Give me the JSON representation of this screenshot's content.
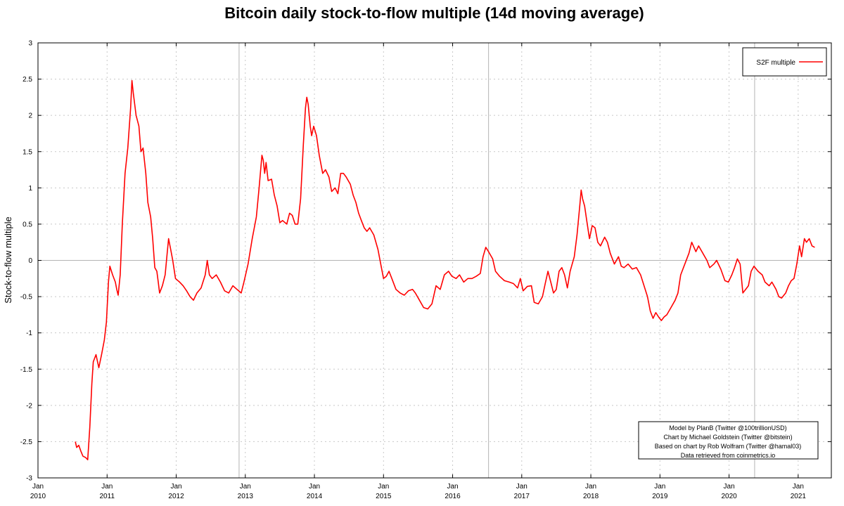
{
  "chart_data": {
    "type": "line",
    "title": "Bitcoin daily stock-to-flow multiple (14d moving average)",
    "ylabel": "Stock-to-flow multiple",
    "xlabel": "",
    "xlim": [
      2010.0,
      2021.48
    ],
    "ylim": [
      -3,
      3
    ],
    "y_ticks": [
      "3",
      "2.5",
      "2",
      "1.5",
      "1",
      "0.5",
      "0",
      "-0.5",
      "-1",
      "-1.5",
      "-2",
      "-2.5",
      "-3"
    ],
    "x_ticks": [
      {
        "month": "Jan",
        "year": "2010"
      },
      {
        "month": "Jan",
        "year": "2011"
      },
      {
        "month": "Jan",
        "year": "2012"
      },
      {
        "month": "Jan",
        "year": "2013"
      },
      {
        "month": "Jan",
        "year": "2014"
      },
      {
        "month": "Jan",
        "year": "2015"
      },
      {
        "month": "Jan",
        "year": "2016"
      },
      {
        "month": "Jan",
        "year": "2017"
      },
      {
        "month": "Jan",
        "year": "2018"
      },
      {
        "month": "Jan",
        "year": "2019"
      },
      {
        "month": "Jan",
        "year": "2020"
      },
      {
        "month": "Jan",
        "year": "2021"
      }
    ],
    "grid": true,
    "halving_lines": [
      2012.91,
      2016.52,
      2020.37
    ],
    "legend": {
      "position": "top-right",
      "entries": [
        "S2F multiple"
      ]
    },
    "credits": [
      "Model by PlanB (Twitter @100trillionUSD)",
      "Chart by Michael Goldstein (Twitter @bitstein)",
      "Based on chart by Rob Wolfram (Twitter @hamal03)",
      "Data retrieved from coinmetrics.io"
    ],
    "series": [
      {
        "name": "S2F multiple",
        "color": "#ff0000",
        "points": [
          [
            2010.54,
            -2.5
          ],
          [
            2010.56,
            -2.58
          ],
          [
            2010.59,
            -2.55
          ],
          [
            2010.62,
            -2.63
          ],
          [
            2010.65,
            -2.7
          ],
          [
            2010.69,
            -2.72
          ],
          [
            2010.72,
            -2.75
          ],
          [
            2010.75,
            -2.3
          ],
          [
            2010.78,
            -1.7
          ],
          [
            2010.8,
            -1.4
          ],
          [
            2010.84,
            -1.3
          ],
          [
            2010.88,
            -1.48
          ],
          [
            2010.92,
            -1.3
          ],
          [
            2010.96,
            -1.1
          ],
          [
            2010.99,
            -0.85
          ],
          [
            2011.02,
            -0.3
          ],
          [
            2011.04,
            -0.08
          ],
          [
            2011.08,
            -0.2
          ],
          [
            2011.12,
            -0.3
          ],
          [
            2011.14,
            -0.4
          ],
          [
            2011.16,
            -0.48
          ],
          [
            2011.19,
            -0.2
          ],
          [
            2011.22,
            0.5
          ],
          [
            2011.26,
            1.2
          ],
          [
            2011.3,
            1.55
          ],
          [
            2011.34,
            2.1
          ],
          [
            2011.36,
            2.48
          ],
          [
            2011.38,
            2.3
          ],
          [
            2011.42,
            2.0
          ],
          [
            2011.46,
            1.85
          ],
          [
            2011.49,
            1.5
          ],
          [
            2011.52,
            1.55
          ],
          [
            2011.56,
            1.2
          ],
          [
            2011.59,
            0.8
          ],
          [
            2011.63,
            0.6
          ],
          [
            2011.66,
            0.3
          ],
          [
            2011.69,
            -0.1
          ],
          [
            2011.72,
            -0.15
          ],
          [
            2011.74,
            -0.3
          ],
          [
            2011.76,
            -0.45
          ],
          [
            2011.8,
            -0.35
          ],
          [
            2011.84,
            -0.2
          ],
          [
            2011.87,
            0.1
          ],
          [
            2011.89,
            0.3
          ],
          [
            2011.92,
            0.15
          ],
          [
            2011.95,
            0.0
          ],
          [
            2011.99,
            -0.25
          ],
          [
            2012.05,
            -0.3
          ],
          [
            2012.1,
            -0.35
          ],
          [
            2012.15,
            -0.42
          ],
          [
            2012.2,
            -0.5
          ],
          [
            2012.25,
            -0.55
          ],
          [
            2012.3,
            -0.45
          ],
          [
            2012.36,
            -0.38
          ],
          [
            2012.42,
            -0.2
          ],
          [
            2012.45,
            0.0
          ],
          [
            2012.48,
            -0.2
          ],
          [
            2012.52,
            -0.25
          ],
          [
            2012.58,
            -0.2
          ],
          [
            2012.64,
            -0.3
          ],
          [
            2012.7,
            -0.42
          ],
          [
            2012.76,
            -0.45
          ],
          [
            2012.82,
            -0.35
          ],
          [
            2012.88,
            -0.4
          ],
          [
            2012.94,
            -0.45
          ],
          [
            2012.98,
            -0.3
          ],
          [
            2013.04,
            -0.05
          ],
          [
            2013.1,
            0.3
          ],
          [
            2013.16,
            0.6
          ],
          [
            2013.2,
            1.0
          ],
          [
            2013.24,
            1.45
          ],
          [
            2013.26,
            1.38
          ],
          [
            2013.28,
            1.2
          ],
          [
            2013.3,
            1.35
          ],
          [
            2013.33,
            1.1
          ],
          [
            2013.38,
            1.12
          ],
          [
            2013.42,
            0.9
          ],
          [
            2013.46,
            0.75
          ],
          [
            2013.5,
            0.52
          ],
          [
            2013.54,
            0.55
          ],
          [
            2013.6,
            0.5
          ],
          [
            2013.64,
            0.65
          ],
          [
            2013.68,
            0.62
          ],
          [
            2013.72,
            0.5
          ],
          [
            2013.76,
            0.5
          ],
          [
            2013.8,
            0.85
          ],
          [
            2013.84,
            1.6
          ],
          [
            2013.87,
            2.1
          ],
          [
            2013.89,
            2.25
          ],
          [
            2013.91,
            2.15
          ],
          [
            2013.94,
            1.85
          ],
          [
            2013.96,
            1.72
          ],
          [
            2013.99,
            1.85
          ],
          [
            2014.03,
            1.72
          ],
          [
            2014.07,
            1.45
          ],
          [
            2014.12,
            1.2
          ],
          [
            2014.16,
            1.25
          ],
          [
            2014.21,
            1.15
          ],
          [
            2014.25,
            0.95
          ],
          [
            2014.3,
            1.0
          ],
          [
            2014.34,
            0.92
          ],
          [
            2014.38,
            1.2
          ],
          [
            2014.42,
            1.2
          ],
          [
            2014.46,
            1.15
          ],
          [
            2014.52,
            1.05
          ],
          [
            2014.56,
            0.9
          ],
          [
            2014.6,
            0.8
          ],
          [
            2014.64,
            0.65
          ],
          [
            2014.68,
            0.55
          ],
          [
            2014.72,
            0.45
          ],
          [
            2014.76,
            0.4
          ],
          [
            2014.8,
            0.45
          ],
          [
            2014.86,
            0.35
          ],
          [
            2014.92,
            0.15
          ],
          [
            2014.97,
            -0.1
          ],
          [
            2015.0,
            -0.25
          ],
          [
            2015.04,
            -0.22
          ],
          [
            2015.08,
            -0.15
          ],
          [
            2015.12,
            -0.25
          ],
          [
            2015.18,
            -0.4
          ],
          [
            2015.24,
            -0.45
          ],
          [
            2015.3,
            -0.48
          ],
          [
            2015.36,
            -0.42
          ],
          [
            2015.42,
            -0.4
          ],
          [
            2015.46,
            -0.45
          ],
          [
            2015.52,
            -0.55
          ],
          [
            2015.58,
            -0.65
          ],
          [
            2015.64,
            -0.67
          ],
          [
            2015.7,
            -0.6
          ],
          [
            2015.76,
            -0.35
          ],
          [
            2015.82,
            -0.4
          ],
          [
            2015.88,
            -0.2
          ],
          [
            2015.94,
            -0.15
          ],
          [
            2015.99,
            -0.22
          ],
          [
            2016.05,
            -0.25
          ],
          [
            2016.1,
            -0.2
          ],
          [
            2016.16,
            -0.3
          ],
          [
            2016.22,
            -0.25
          ],
          [
            2016.28,
            -0.25
          ],
          [
            2016.34,
            -0.22
          ],
          [
            2016.4,
            -0.18
          ],
          [
            2016.44,
            0.05
          ],
          [
            2016.48,
            0.18
          ],
          [
            2016.52,
            0.12
          ],
          [
            2016.58,
            0.02
          ],
          [
            2016.62,
            -0.15
          ],
          [
            2016.68,
            -0.22
          ],
          [
            2016.75,
            -0.28
          ],
          [
            2016.82,
            -0.3
          ],
          [
            2016.88,
            -0.32
          ],
          [
            2016.94,
            -0.38
          ],
          [
            2016.98,
            -0.25
          ],
          [
            2017.02,
            -0.42
          ],
          [
            2017.08,
            -0.36
          ],
          [
            2017.14,
            -0.35
          ],
          [
            2017.18,
            -0.58
          ],
          [
            2017.24,
            -0.6
          ],
          [
            2017.3,
            -0.5
          ],
          [
            2017.34,
            -0.32
          ],
          [
            2017.38,
            -0.15
          ],
          [
            2017.42,
            -0.3
          ],
          [
            2017.46,
            -0.45
          ],
          [
            2017.5,
            -0.4
          ],
          [
            2017.54,
            -0.15
          ],
          [
            2017.58,
            -0.1
          ],
          [
            2017.62,
            -0.2
          ],
          [
            2017.66,
            -0.38
          ],
          [
            2017.7,
            -0.15
          ],
          [
            2017.76,
            0.05
          ],
          [
            2017.8,
            0.35
          ],
          [
            2017.84,
            0.75
          ],
          [
            2017.86,
            0.97
          ],
          [
            2017.88,
            0.85
          ],
          [
            2017.91,
            0.75
          ],
          [
            2017.94,
            0.55
          ],
          [
            2017.98,
            0.3
          ],
          [
            2018.02,
            0.48
          ],
          [
            2018.06,
            0.45
          ],
          [
            2018.1,
            0.25
          ],
          [
            2018.14,
            0.2
          ],
          [
            2018.2,
            0.32
          ],
          [
            2018.24,
            0.25
          ],
          [
            2018.28,
            0.1
          ],
          [
            2018.34,
            -0.05
          ],
          [
            2018.4,
            0.05
          ],
          [
            2018.44,
            -0.08
          ],
          [
            2018.48,
            -0.1
          ],
          [
            2018.54,
            -0.05
          ],
          [
            2018.6,
            -0.12
          ],
          [
            2018.66,
            -0.1
          ],
          [
            2018.72,
            -0.2
          ],
          [
            2018.78,
            -0.38
          ],
          [
            2018.82,
            -0.5
          ],
          [
            2018.86,
            -0.7
          ],
          [
            2018.9,
            -0.8
          ],
          [
            2018.94,
            -0.72
          ],
          [
            2018.98,
            -0.78
          ],
          [
            2019.02,
            -0.83
          ],
          [
            2019.06,
            -0.78
          ],
          [
            2019.1,
            -0.75
          ],
          [
            2019.16,
            -0.65
          ],
          [
            2019.22,
            -0.55
          ],
          [
            2019.26,
            -0.45
          ],
          [
            2019.3,
            -0.2
          ],
          [
            2019.36,
            -0.05
          ],
          [
            2019.42,
            0.1
          ],
          [
            2019.46,
            0.25
          ],
          [
            2019.52,
            0.12
          ],
          [
            2019.56,
            0.2
          ],
          [
            2019.62,
            0.1
          ],
          [
            2019.68,
            0.0
          ],
          [
            2019.72,
            -0.1
          ],
          [
            2019.78,
            -0.05
          ],
          [
            2019.82,
            0.0
          ],
          [
            2019.88,
            -0.12
          ],
          [
            2019.94,
            -0.28
          ],
          [
            2019.99,
            -0.3
          ],
          [
            2020.04,
            -0.2
          ],
          [
            2020.08,
            -0.1
          ],
          [
            2020.12,
            0.02
          ],
          [
            2020.16,
            -0.05
          ],
          [
            2020.2,
            -0.45
          ],
          [
            2020.24,
            -0.4
          ],
          [
            2020.28,
            -0.35
          ],
          [
            2020.32,
            -0.15
          ],
          [
            2020.36,
            -0.08
          ],
          [
            2020.42,
            -0.15
          ],
          [
            2020.48,
            -0.2
          ],
          [
            2020.52,
            -0.3
          ],
          [
            2020.58,
            -0.35
          ],
          [
            2020.62,
            -0.3
          ],
          [
            2020.68,
            -0.4
          ],
          [
            2020.72,
            -0.5
          ],
          [
            2020.76,
            -0.52
          ],
          [
            2020.82,
            -0.45
          ],
          [
            2020.86,
            -0.35
          ],
          [
            2020.9,
            -0.28
          ],
          [
            2020.94,
            -0.25
          ],
          [
            2020.98,
            -0.05
          ],
          [
            2021.02,
            0.2
          ],
          [
            2021.05,
            0.05
          ],
          [
            2021.09,
            0.3
          ],
          [
            2021.12,
            0.25
          ],
          [
            2021.16,
            0.3
          ],
          [
            2021.2,
            0.2
          ],
          [
            2021.24,
            0.18
          ]
        ]
      }
    ]
  }
}
